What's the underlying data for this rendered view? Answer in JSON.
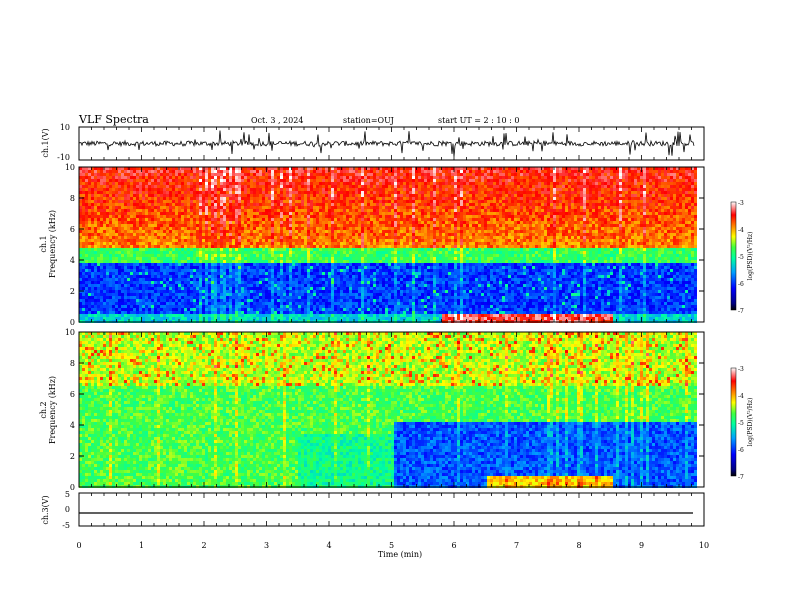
{
  "header": {
    "title": "VLF Spectra",
    "date": "Oct. 3  , 2024",
    "station": "station=OUJ",
    "start_ut": "start  UT =   2 : 10 : 0"
  },
  "chart_data": [
    {
      "type": "line",
      "name": "ch1-waveform",
      "ylabel": "ch.1(V)",
      "ylim": [
        -10,
        10
      ],
      "yticks": [
        "10",
        "-10"
      ],
      "xlim": [
        0,
        10
      ],
      "series_mean": 0,
      "series_noise": 1.5
    },
    {
      "type": "heatmap",
      "name": "ch1-spectrogram",
      "ylabel_top": "ch.1",
      "ylabel": "Frequency  (kHz)",
      "ylim": [
        0,
        10
      ],
      "yticks": [
        "0",
        "2",
        "4",
        "6",
        "8",
        "10"
      ],
      "xlim": [
        0,
        10
      ],
      "data_end_min": 9.85,
      "colorbar": {
        "label": "log(PSD)(V²/Hz)",
        "range": [
          -7,
          -3
        ],
        "ticks": [
          "-3",
          "-4",
          "-5",
          "-6",
          "-7"
        ]
      }
    },
    {
      "type": "heatmap",
      "name": "ch2-spectrogram",
      "ylabel_top": "ch.2",
      "ylabel": "Frequency  (kHz)",
      "ylim": [
        0,
        10
      ],
      "yticks": [
        "0",
        "2",
        "4",
        "6",
        "8",
        "10"
      ],
      "xlim": [
        0,
        10
      ],
      "data_end_min": 9.85,
      "colorbar": {
        "label": "log(PSD)(V²/Hz)",
        "range": [
          -7,
          -3
        ],
        "ticks": [
          "-3",
          "-4",
          "-5",
          "-6",
          "-7"
        ]
      }
    },
    {
      "type": "line",
      "name": "ch3-waveform",
      "ylabel": "ch.3(V)",
      "ylim": [
        -5,
        5
      ],
      "yticks": [
        "5",
        "0",
        "-5"
      ],
      "xlim": [
        0,
        10
      ],
      "series_constant": -1.0
    }
  ],
  "xaxis": {
    "label": "Time  (min)",
    "ticks": [
      "0",
      "1",
      "2",
      "3",
      "4",
      "5",
      "6",
      "7",
      "8",
      "9",
      "10"
    ]
  },
  "colors": {
    "palette": [
      "#000080",
      "#0000ff",
      "#0060ff",
      "#00c0ff",
      "#00ffc0",
      "#40ff40",
      "#c0ff00",
      "#ffff00",
      "#ffa000",
      "#ff2000",
      "#ff0000"
    ]
  }
}
